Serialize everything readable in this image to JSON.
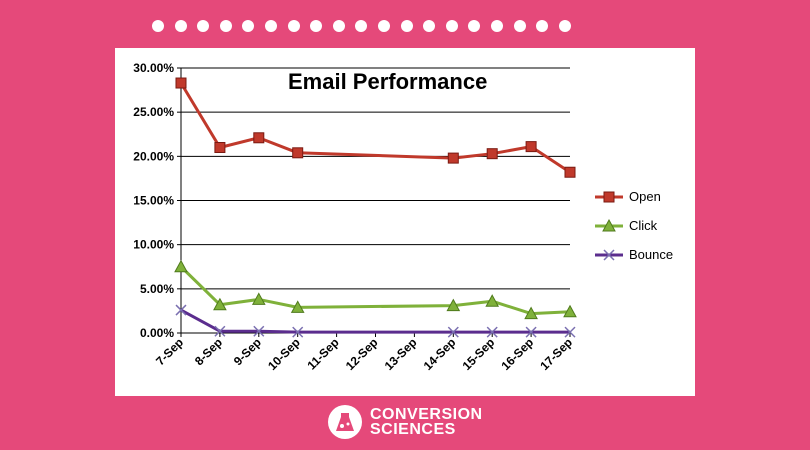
{
  "colors": {
    "background": "#e5497a",
    "open": "#c0392b",
    "click": "#7fb13a",
    "bounce": "#5b2d8e"
  },
  "logo": {
    "line1": "CONVERSION",
    "line2": "SCIENCES"
  },
  "chart_data": {
    "type": "line",
    "title": "Email Performance",
    "xlabel": "",
    "ylabel": "",
    "grid": true,
    "legend_position": "right",
    "x_ticks": [
      "7-Sep",
      "8-Sep",
      "9-Sep",
      "10-Sep",
      "11-Sep",
      "12-Sep",
      "13-Sep",
      "14-Sep",
      "15-Sep",
      "16-Sep",
      "17-Sep"
    ],
    "y_ticks": [
      "0.00%",
      "5.00%",
      "10.00%",
      "15.00%",
      "20.00%",
      "25.00%",
      "30.00%"
    ],
    "ylim": [
      0,
      30
    ],
    "series": [
      {
        "name": "Open",
        "marker": "square",
        "points": [
          {
            "x": "7-Sep",
            "y": 28.3
          },
          {
            "x": "8-Sep",
            "y": 21.0
          },
          {
            "x": "9-Sep",
            "y": 22.1
          },
          {
            "x": "10-Sep",
            "y": 20.4
          },
          {
            "x": "14-Sep",
            "y": 19.8
          },
          {
            "x": "15-Sep",
            "y": 20.3
          },
          {
            "x": "16-Sep",
            "y": 21.1
          },
          {
            "x": "17-Sep",
            "y": 18.2
          }
        ]
      },
      {
        "name": "Click",
        "marker": "triangle",
        "points": [
          {
            "x": "7-Sep",
            "y": 7.5
          },
          {
            "x": "8-Sep",
            "y": 3.2
          },
          {
            "x": "9-Sep",
            "y": 3.8
          },
          {
            "x": "10-Sep",
            "y": 2.9
          },
          {
            "x": "14-Sep",
            "y": 3.1
          },
          {
            "x": "15-Sep",
            "y": 3.6
          },
          {
            "x": "16-Sep",
            "y": 2.2
          },
          {
            "x": "17-Sep",
            "y": 2.4
          }
        ]
      },
      {
        "name": "Bounce",
        "marker": "x",
        "points": [
          {
            "x": "7-Sep",
            "y": 2.6
          },
          {
            "x": "8-Sep",
            "y": 0.2
          },
          {
            "x": "9-Sep",
            "y": 0.2
          },
          {
            "x": "10-Sep",
            "y": 0.1
          },
          {
            "x": "14-Sep",
            "y": 0.1
          },
          {
            "x": "15-Sep",
            "y": 0.1
          },
          {
            "x": "16-Sep",
            "y": 0.1
          },
          {
            "x": "17-Sep",
            "y": 0.1
          }
        ]
      }
    ]
  }
}
